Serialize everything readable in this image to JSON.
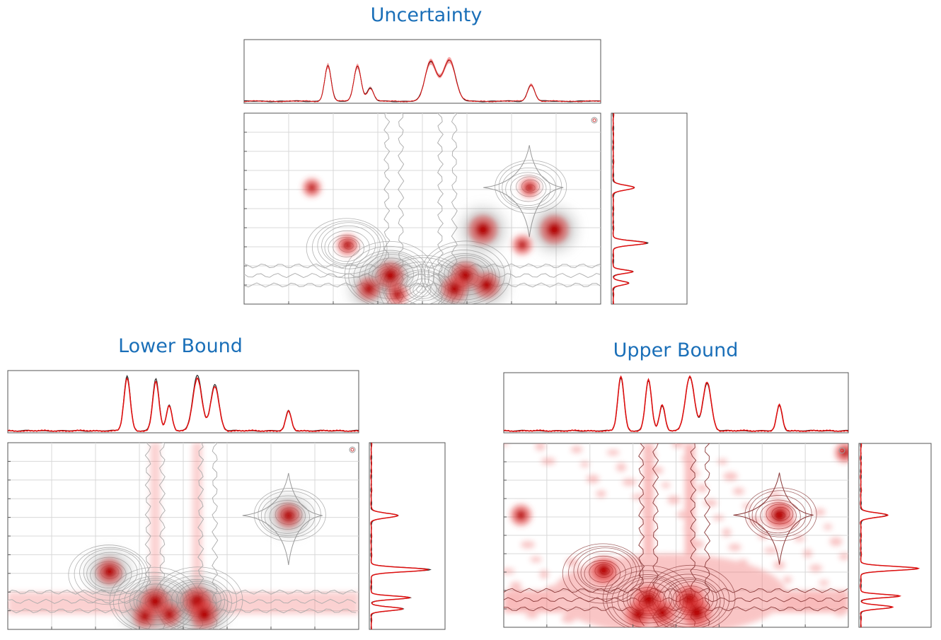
{
  "colors": {
    "title": "#1a6fb8",
    "red": "#e01010",
    "dark": "#2a2a2a",
    "grid": "#d8d8d8",
    "frame": "#555555"
  },
  "chart_data": [
    {
      "type": "heatmap",
      "title": "Uncertainty",
      "style": "uncertainty-band",
      "top_peaks": [
        [
          0.235,
          0.6,
          0.009
        ],
        [
          0.318,
          0.6,
          0.01
        ],
        [
          0.354,
          0.22,
          0.009
        ],
        [
          0.522,
          0.62,
          0.015
        ],
        [
          0.578,
          0.58,
          0.016
        ],
        [
          0.556,
          0.2,
          0.02
        ],
        [
          0.805,
          0.28,
          0.01
        ]
      ],
      "side_peaks": [
        [
          0.39,
          0.3,
          0.012
        ],
        [
          0.68,
          0.48,
          0.011
        ],
        [
          0.83,
          0.28,
          0.009
        ],
        [
          0.89,
          0.22,
          0.01
        ]
      ],
      "hot_spots": [
        [
          0.67,
          0.61,
          1.0
        ],
        [
          0.87,
          0.61,
          1.0
        ],
        [
          0.41,
          0.85,
          0.9
        ],
        [
          0.62,
          0.85,
          0.9
        ],
        [
          0.59,
          0.92,
          0.8
        ],
        [
          0.68,
          0.9,
          0.8
        ],
        [
          0.29,
          0.69,
          0.5
        ],
        [
          0.78,
          0.69,
          0.4
        ],
        [
          0.19,
          0.39,
          0.3
        ],
        [
          0.8,
          0.39,
          0.4
        ],
        [
          0.35,
          0.92,
          0.6
        ],
        [
          0.43,
          0.95,
          0.5
        ]
      ],
      "contour_centers": [
        [
          0.8,
          0.39,
          0.6
        ],
        [
          0.29,
          0.7,
          0.7
        ],
        [
          0.41,
          0.85,
          1.0
        ],
        [
          0.62,
          0.85,
          1.0
        ],
        [
          0.5,
          0.92,
          0.9
        ]
      ]
    },
    {
      "type": "heatmap",
      "title": "Lower Bound",
      "style": "lower",
      "top_peaks": [
        [
          0.34,
          0.95,
          0.009
        ],
        [
          0.422,
          0.9,
          0.009
        ],
        [
          0.46,
          0.45,
          0.008
        ],
        [
          0.54,
          0.95,
          0.013
        ],
        [
          0.59,
          0.8,
          0.012
        ],
        [
          0.8,
          0.35,
          0.008
        ]
      ],
      "side_peaks": [
        [
          0.39,
          0.38,
          0.012
        ],
        [
          0.68,
          0.82,
          0.011
        ],
        [
          0.83,
          0.55,
          0.009
        ],
        [
          0.89,
          0.45,
          0.01
        ]
      ],
      "hot_spots": [
        [
          0.8,
          0.39,
          0.7
        ],
        [
          0.29,
          0.69,
          0.8
        ],
        [
          0.42,
          0.85,
          0.9
        ],
        [
          0.54,
          0.85,
          1.0
        ],
        [
          0.56,
          0.92,
          0.9
        ],
        [
          0.39,
          0.93,
          0.6
        ],
        [
          0.46,
          0.92,
          0.6
        ]
      ],
      "contour_centers": [
        [
          0.8,
          0.39,
          0.6
        ],
        [
          0.29,
          0.7,
          0.7
        ],
        [
          0.42,
          0.85,
          1.0
        ],
        [
          0.54,
          0.85,
          1.0
        ]
      ]
    },
    {
      "type": "heatmap",
      "title": "Upper Bound",
      "style": "upper",
      "top_peaks": [
        [
          0.34,
          0.95,
          0.009
        ],
        [
          0.42,
          0.9,
          0.009
        ],
        [
          0.46,
          0.45,
          0.008
        ],
        [
          0.54,
          0.95,
          0.013
        ],
        [
          0.59,
          0.85,
          0.012
        ],
        [
          0.8,
          0.45,
          0.008
        ]
      ],
      "side_peaks": [
        [
          0.39,
          0.38,
          0.012
        ],
        [
          0.68,
          0.82,
          0.011
        ],
        [
          0.83,
          0.55,
          0.009
        ],
        [
          0.89,
          0.45,
          0.01
        ]
      ],
      "hot_spots": [
        [
          0.8,
          0.39,
          1.0
        ],
        [
          0.29,
          0.69,
          0.9
        ],
        [
          0.42,
          0.85,
          1.0
        ],
        [
          0.54,
          0.85,
          1.0
        ],
        [
          0.56,
          0.92,
          1.0
        ],
        [
          0.39,
          0.93,
          0.8
        ],
        [
          0.46,
          0.92,
          0.8
        ],
        [
          0.05,
          0.39,
          0.5
        ],
        [
          0.99,
          0.05,
          0.4
        ]
      ],
      "contour_centers": [
        [
          0.8,
          0.39,
          0.6
        ],
        [
          0.29,
          0.7,
          0.7
        ],
        [
          0.42,
          0.85,
          1.0
        ],
        [
          0.54,
          0.85,
          1.0
        ]
      ]
    }
  ]
}
